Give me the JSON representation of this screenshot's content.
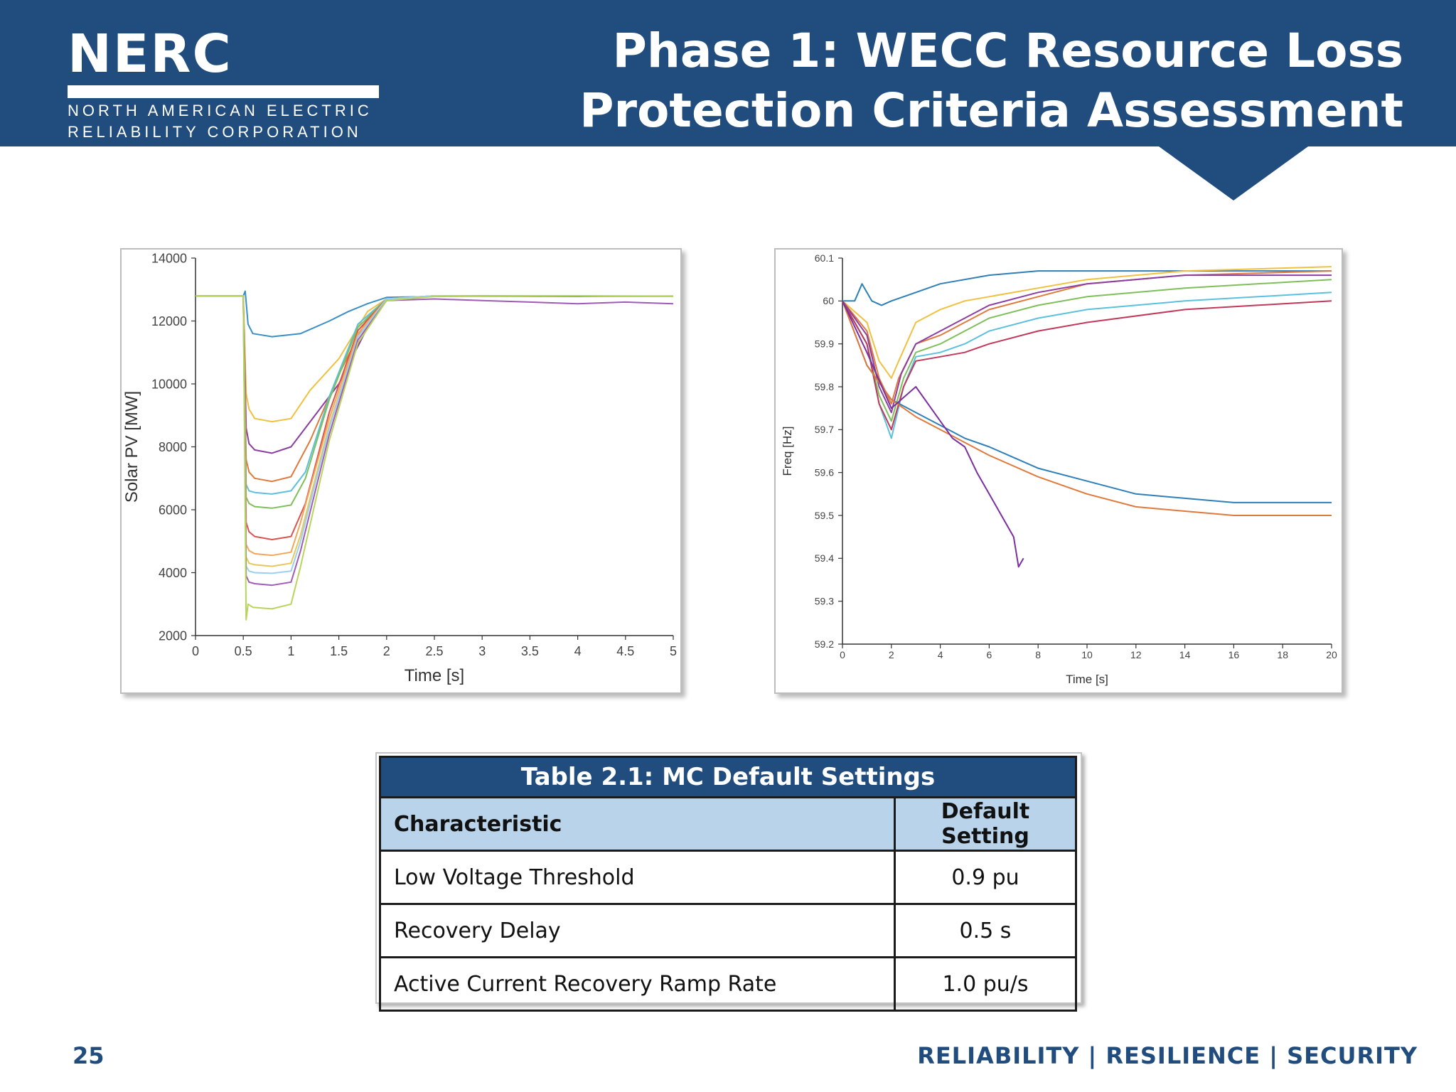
{
  "header": {
    "logo_word": "NERC",
    "logo_line1": "NORTH AMERICAN ELECTRIC",
    "logo_line2": "RELIABILITY CORPORATION",
    "title_line1": "Phase 1: WECC Resource Loss",
    "title_line2": "Protection Criteria Assessment",
    "colors": {
      "brand_blue": "#204c7e",
      "table_header_blue": "#b9d4ea"
    }
  },
  "chart_data": [
    {
      "type": "line",
      "title": "",
      "xlabel": "Time [s]",
      "ylabel": "Solar PV [MW]",
      "xlim": [
        0,
        5
      ],
      "ylim": [
        2000,
        14000
      ],
      "xticks": [
        "0",
        "0.5",
        "1",
        "1.5",
        "2",
        "2.5",
        "3",
        "3.5",
        "4",
        "4.5",
        "5"
      ],
      "yticks": [
        "2000",
        "4000",
        "6000",
        "8000",
        "10000",
        "12000",
        "14000"
      ],
      "series": [
        {
          "color": "#3a8fc4",
          "x": [
            0,
            0.5,
            0.52,
            0.55,
            0.6,
            0.8,
            1.1,
            1.4,
            1.6,
            1.8,
            2.0,
            2.5,
            3,
            4,
            5
          ],
          "y": [
            12800,
            12800,
            12950,
            11900,
            11600,
            11500,
            11600,
            12000,
            12300,
            12550,
            12750,
            12780,
            12800,
            12780,
            12780
          ]
        },
        {
          "color": "#f0c040",
          "x": [
            0,
            0.5,
            0.53,
            0.56,
            0.62,
            0.8,
            1.0,
            1.2,
            1.5,
            1.8,
            2.0,
            2.5,
            3,
            4,
            5
          ],
          "y": [
            12800,
            12800,
            9700,
            9200,
            8900,
            8800,
            8900,
            9800,
            10800,
            12300,
            12700,
            12800,
            12780,
            12790,
            12780
          ]
        },
        {
          "color": "#8a3fa0",
          "x": [
            0,
            0.5,
            0.53,
            0.56,
            0.62,
            0.8,
            1.0,
            1.2,
            1.5,
            1.8,
            2.0,
            2.5,
            3,
            4,
            5
          ],
          "y": [
            12800,
            12800,
            8600,
            8100,
            7900,
            7800,
            8000,
            8800,
            10000,
            11800,
            12650,
            12800,
            12790,
            12780,
            12780
          ]
        },
        {
          "color": "#e07a3c",
          "x": [
            0,
            0.5,
            0.53,
            0.56,
            0.62,
            0.8,
            1.0,
            1.2,
            1.5,
            1.8,
            2.0,
            2.5,
            3,
            4,
            5
          ],
          "y": [
            12800,
            12800,
            7600,
            7200,
            7000,
            6900,
            7050,
            8200,
            10300,
            12100,
            12700,
            12800,
            12790,
            12790,
            12780
          ]
        },
        {
          "color": "#5bc0de",
          "x": [
            0,
            0.5,
            0.53,
            0.56,
            0.62,
            0.8,
            1.0,
            1.15,
            1.4,
            1.7,
            2.0,
            2.5,
            3,
            4,
            5
          ],
          "y": [
            12800,
            12800,
            6800,
            6600,
            6550,
            6500,
            6600,
            7200,
            9600,
            11900,
            12700,
            12780,
            12790,
            12790,
            12780
          ]
        },
        {
          "color": "#7fbf5a",
          "x": [
            0,
            0.5,
            0.53,
            0.56,
            0.62,
            0.8,
            1.0,
            1.15,
            1.4,
            1.7,
            2.0,
            2.5,
            3,
            4,
            5
          ],
          "y": [
            12800,
            12800,
            6400,
            6200,
            6100,
            6050,
            6150,
            7000,
            9500,
            11800,
            12700,
            12790,
            12800,
            12800,
            12790
          ]
        },
        {
          "color": "#d9534f",
          "x": [
            0,
            0.5,
            0.53,
            0.56,
            0.62,
            0.8,
            1.0,
            1.15,
            1.4,
            1.7,
            2.0,
            2.5,
            3,
            4,
            5
          ],
          "y": [
            12800,
            12800,
            5600,
            5300,
            5150,
            5050,
            5150,
            6200,
            9100,
            11700,
            12700,
            12800,
            12790,
            12790,
            12780
          ]
        },
        {
          "color": "#f2a65a",
          "x": [
            0,
            0.5,
            0.53,
            0.56,
            0.62,
            0.8,
            1.0,
            1.1,
            1.4,
            1.7,
            2.0,
            2.5,
            3,
            4,
            5
          ],
          "y": [
            12800,
            12800,
            4900,
            4700,
            4600,
            4550,
            4650,
            5600,
            8900,
            11600,
            12700,
            12800,
            12790,
            12790,
            12780
          ]
        },
        {
          "color": "#e6c85a",
          "x": [
            0,
            0.5,
            0.53,
            0.56,
            0.62,
            0.8,
            1.0,
            1.1,
            1.4,
            1.7,
            2.0,
            2.5,
            3,
            4,
            5
          ],
          "y": [
            12800,
            12800,
            4500,
            4300,
            4250,
            4200,
            4300,
            5200,
            8700,
            11500,
            12700,
            12800,
            12790,
            12790,
            12780
          ]
        },
        {
          "color": "#9ad0f0",
          "x": [
            0,
            0.5,
            0.53,
            0.56,
            0.62,
            0.8,
            1.0,
            1.1,
            1.4,
            1.7,
            2.0,
            2.5,
            3,
            4,
            5
          ],
          "y": [
            12800,
            12800,
            4200,
            4050,
            4000,
            3980,
            4050,
            5000,
            8600,
            11500,
            12700,
            12800,
            12790,
            12790,
            12780
          ]
        },
        {
          "color": "#a05ab8",
          "x": [
            0,
            0.5,
            0.53,
            0.56,
            0.62,
            0.8,
            1.0,
            1.1,
            1.4,
            1.7,
            2.0,
            2.5,
            3,
            3.5,
            4,
            4.5,
            5
          ],
          "y": [
            12800,
            12800,
            3900,
            3700,
            3650,
            3600,
            3700,
            4700,
            8400,
            11400,
            12650,
            12700,
            12650,
            12600,
            12550,
            12600,
            12550
          ]
        },
        {
          "color": "#b6d65a",
          "x": [
            0,
            0.5,
            0.53,
            0.55,
            0.6,
            0.8,
            1.0,
            1.1,
            1.4,
            1.7,
            2.0,
            2.5,
            3,
            4,
            5
          ],
          "y": [
            12800,
            12800,
            2500,
            3000,
            2900,
            2850,
            3000,
            4200,
            8200,
            11300,
            12650,
            12780,
            12790,
            12790,
            12780
          ]
        }
      ]
    },
    {
      "type": "line",
      "title": "",
      "xlabel": "Time [s]",
      "ylabel": "Freq [Hz]",
      "xlim": [
        0,
        20
      ],
      "ylim": [
        59.2,
        60.1
      ],
      "xticks": [
        "0",
        "2",
        "4",
        "6",
        "8",
        "10",
        "12",
        "14",
        "16",
        "18",
        "20"
      ],
      "yticks": [
        "59.2",
        "59.3",
        "59.4",
        "59.5",
        "59.6",
        "59.7",
        "59.8",
        "59.9",
        "60",
        "60.1"
      ],
      "series": [
        {
          "color": "#2f7fb8",
          "x": [
            0,
            0.5,
            0.8,
            1.2,
            1.6,
            2.0,
            3,
            4,
            6,
            8,
            10,
            14,
            20
          ],
          "y": [
            60.0,
            60.0,
            60.04,
            60.0,
            59.99,
            60.0,
            60.02,
            60.04,
            60.06,
            60.07,
            60.07,
            60.07,
            60.07
          ]
        },
        {
          "color": "#f0c040",
          "x": [
            0,
            1.0,
            1.5,
            2.0,
            2.3,
            3,
            4,
            5,
            6,
            8,
            10,
            14,
            20
          ],
          "y": [
            60.0,
            59.95,
            59.86,
            59.82,
            59.86,
            59.95,
            59.98,
            60.0,
            60.01,
            60.03,
            60.05,
            60.07,
            60.08
          ]
        },
        {
          "color": "#e07a3c",
          "x": [
            0,
            1.0,
            1.5,
            2.0,
            2.3,
            3,
            4,
            5,
            6,
            8,
            10,
            14,
            20
          ],
          "y": [
            60.0,
            59.93,
            59.82,
            59.76,
            59.82,
            59.9,
            59.92,
            59.95,
            59.98,
            60.01,
            60.04,
            60.06,
            60.07
          ]
        },
        {
          "color": "#8a3fa0",
          "x": [
            0,
            1.0,
            1.5,
            2.0,
            2.4,
            3,
            4,
            5,
            6,
            8,
            10,
            14,
            20
          ],
          "y": [
            60.0,
            59.92,
            59.8,
            59.74,
            59.83,
            59.9,
            59.93,
            59.96,
            59.99,
            60.02,
            60.04,
            60.06,
            60.06
          ]
        },
        {
          "color": "#7fbf5a",
          "x": [
            0,
            1.0,
            1.5,
            2.0,
            2.5,
            3,
            4,
            5,
            6,
            8,
            10,
            14,
            20
          ],
          "y": [
            60.0,
            59.9,
            59.78,
            59.72,
            59.82,
            59.88,
            59.9,
            59.93,
            59.96,
            59.99,
            60.01,
            60.03,
            60.05
          ]
        },
        {
          "color": "#5bc0de",
          "x": [
            0,
            1.0,
            1.5,
            2.0,
            2.5,
            3,
            4,
            5,
            6,
            8,
            10,
            14,
            20
          ],
          "y": [
            60.0,
            59.9,
            59.76,
            59.68,
            59.8,
            59.87,
            59.88,
            59.9,
            59.93,
            59.96,
            59.98,
            60.0,
            60.02
          ]
        },
        {
          "color": "#c0395a",
          "x": [
            0,
            1.0,
            1.5,
            2.0,
            2.5,
            3,
            4,
            5,
            6,
            8,
            10,
            14,
            20
          ],
          "y": [
            60.0,
            59.9,
            59.76,
            59.7,
            59.8,
            59.86,
            59.87,
            59.88,
            59.9,
            59.93,
            59.95,
            59.98,
            60.0
          ]
        },
        {
          "color": "#2f7fb8",
          "x": [
            0,
            1.0,
            2.0,
            3,
            4,
            5,
            6,
            8,
            10,
            12,
            14,
            16,
            20
          ],
          "y": [
            60.0,
            59.85,
            59.77,
            59.74,
            59.71,
            59.68,
            59.66,
            59.61,
            59.58,
            59.55,
            59.54,
            59.53,
            59.53
          ]
        },
        {
          "color": "#e07a3c",
          "x": [
            0,
            1.0,
            2.0,
            3,
            4,
            5,
            6,
            8,
            10,
            12,
            14,
            16,
            20
          ],
          "y": [
            60.0,
            59.85,
            59.77,
            59.73,
            59.7,
            59.67,
            59.64,
            59.59,
            59.55,
            59.52,
            59.51,
            59.5,
            59.5
          ]
        },
        {
          "color": "#7b2fa0",
          "x": [
            0,
            1.0,
            2.0,
            3,
            4,
            4.5,
            5,
            5.5,
            6,
            6.5,
            7,
            7.2,
            7.4
          ],
          "y": [
            60.0,
            59.88,
            59.75,
            59.8,
            59.72,
            59.68,
            59.66,
            59.6,
            59.55,
            59.5,
            59.45,
            59.38,
            59.4
          ]
        }
      ]
    }
  ],
  "table": {
    "caption": "Table 2.1: MC Default Settings",
    "columns": [
      "Characteristic",
      "Default Setting"
    ],
    "rows": [
      [
        "Low Voltage Threshold",
        "0.9 pu"
      ],
      [
        "Recovery Delay",
        "0.5 s"
      ],
      [
        "Active Current Recovery Ramp Rate",
        "1.0 pu/s"
      ]
    ]
  },
  "footer": {
    "page_number": "25",
    "tagline": "RELIABILITY | RESILIENCE | SECURITY"
  }
}
